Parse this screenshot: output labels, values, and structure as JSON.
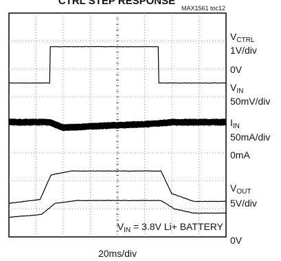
{
  "chart_data": {
    "type": "line",
    "title": "CTRL STEP RESPONSE",
    "figure_id": "MAX1561 toc12",
    "xlabel": "20ms/div",
    "x_divisions": 8,
    "y_divisions": 8,
    "grid": true,
    "condition": {
      "prefix": "V",
      "sub": "IN",
      "text": " = 3.8V Li+ BATTERY"
    },
    "channel_labels": [
      {
        "name": "V",
        "sub": "CTRL",
        "scale": "1V/div",
        "ground": "0V"
      },
      {
        "name": "V",
        "sub": "IN",
        "scale": "50mV/div",
        "ground": ""
      },
      {
        "name": "I",
        "sub": "IN",
        "scale": "50mA/div",
        "ground": "0mA"
      },
      {
        "name": "V",
        "sub": "OUT",
        "scale": "5V/div",
        "ground": "0V"
      }
    ],
    "series": [
      {
        "name": "VCTRL",
        "x": [
          0,
          1.5,
          1.5,
          5.5,
          5.5,
          8
        ],
        "y": [
          0,
          0,
          1,
          1,
          0,
          0
        ]
      },
      {
        "name": "VIN",
        "x": [
          0,
          1.5,
          2,
          3,
          5.5,
          6,
          8
        ],
        "y": [
          0,
          0,
          -0.2,
          -0.15,
          -0.05,
          0,
          0
        ]
      },
      {
        "name": "IIN",
        "x": [
          0,
          1.15,
          1.55,
          2.3,
          5.6,
          6.0,
          6.8,
          8
        ],
        "y": [
          0,
          0.2,
          1.45,
          1.65,
          1.65,
          0.5,
          0.1,
          0.1
        ]
      },
      {
        "name": "VOUT",
        "x": [
          0,
          1.2,
          1.7,
          2.5,
          5.6,
          6.1,
          6.8,
          8
        ],
        "y": [
          0,
          0.1,
          0.5,
          0.6,
          0.6,
          0.3,
          0.15,
          0.15
        ]
      }
    ]
  }
}
